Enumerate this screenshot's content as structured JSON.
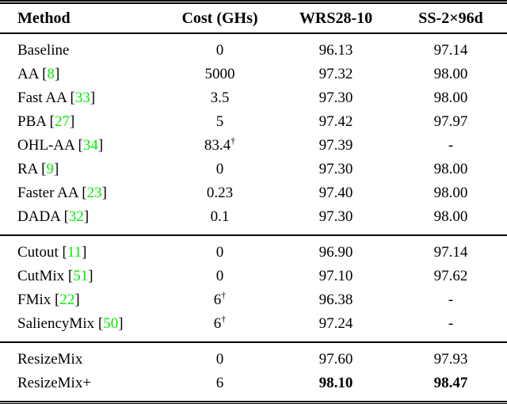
{
  "figure": {
    "columns": [
      {
        "label": "Method"
      },
      {
        "label": "Cost (GHs)"
      },
      {
        "label": "WRS28-10"
      },
      {
        "label": "SS-2×96d"
      }
    ],
    "dagger_symbol": "†",
    "sections": [
      {
        "name": "auto-augmentation-methods",
        "rows": [
          {
            "method": "Baseline",
            "cite": null,
            "cost": "0",
            "dagger": false,
            "wrs": "96.13",
            "ss": "97.14",
            "bold": false
          },
          {
            "method": "AA",
            "cite": "8",
            "cost": "5000",
            "dagger": false,
            "wrs": "97.32",
            "ss": "98.00",
            "bold": false
          },
          {
            "method": "Fast AA",
            "cite": "33",
            "cost": "3.5",
            "dagger": false,
            "wrs": "97.30",
            "ss": "98.00",
            "bold": false
          },
          {
            "method": "PBA",
            "cite": "27",
            "cost": "5",
            "dagger": false,
            "wrs": "97.42",
            "ss": "97.97",
            "bold": false
          },
          {
            "method": "OHL-AA",
            "cite": "34",
            "cost": "83.4",
            "dagger": true,
            "wrs": "97.39",
            "ss": "-",
            "bold": false
          },
          {
            "method": "RA",
            "cite": "9",
            "cost": "0",
            "dagger": false,
            "wrs": "97.30",
            "ss": "98.00",
            "bold": false
          },
          {
            "method": "Faster AA",
            "cite": "23",
            "cost": "0.23",
            "dagger": false,
            "wrs": "97.40",
            "ss": "98.00",
            "bold": false
          },
          {
            "method": "DADA",
            "cite": "32",
            "cost": "0.1",
            "dagger": false,
            "wrs": "97.30",
            "ss": "98.00",
            "bold": false
          }
        ]
      },
      {
        "name": "mixing-augmentation-methods",
        "rows": [
          {
            "method": "Cutout",
            "cite": "11",
            "cost": "0",
            "dagger": false,
            "wrs": "96.90",
            "ss": "97.14",
            "bold": false
          },
          {
            "method": "CutMix",
            "cite": "51",
            "cost": "0",
            "dagger": false,
            "wrs": "97.10",
            "ss": "97.62",
            "bold": false
          },
          {
            "method": "FMix",
            "cite": "22",
            "cost": "6",
            "dagger": true,
            "wrs": "96.38",
            "ss": "-",
            "bold": false
          },
          {
            "method": "SaliencyMix",
            "cite": "50",
            "cost": "6",
            "dagger": true,
            "wrs": "97.24",
            "ss": "-",
            "bold": false
          }
        ]
      },
      {
        "name": "resizemix-methods",
        "rows": [
          {
            "method": "ResizeMix",
            "cite": null,
            "cost": "0",
            "dagger": false,
            "wrs": "97.60",
            "ss": "97.93",
            "bold": false
          },
          {
            "method": "ResizeMix+",
            "cite": null,
            "cost": "6",
            "dagger": false,
            "wrs": "98.10",
            "ss": "98.47",
            "bold": true
          }
        ]
      }
    ]
  },
  "colors": {
    "citation_green": "#00EE00",
    "text": "#000000",
    "background": "#FFFFFF"
  }
}
